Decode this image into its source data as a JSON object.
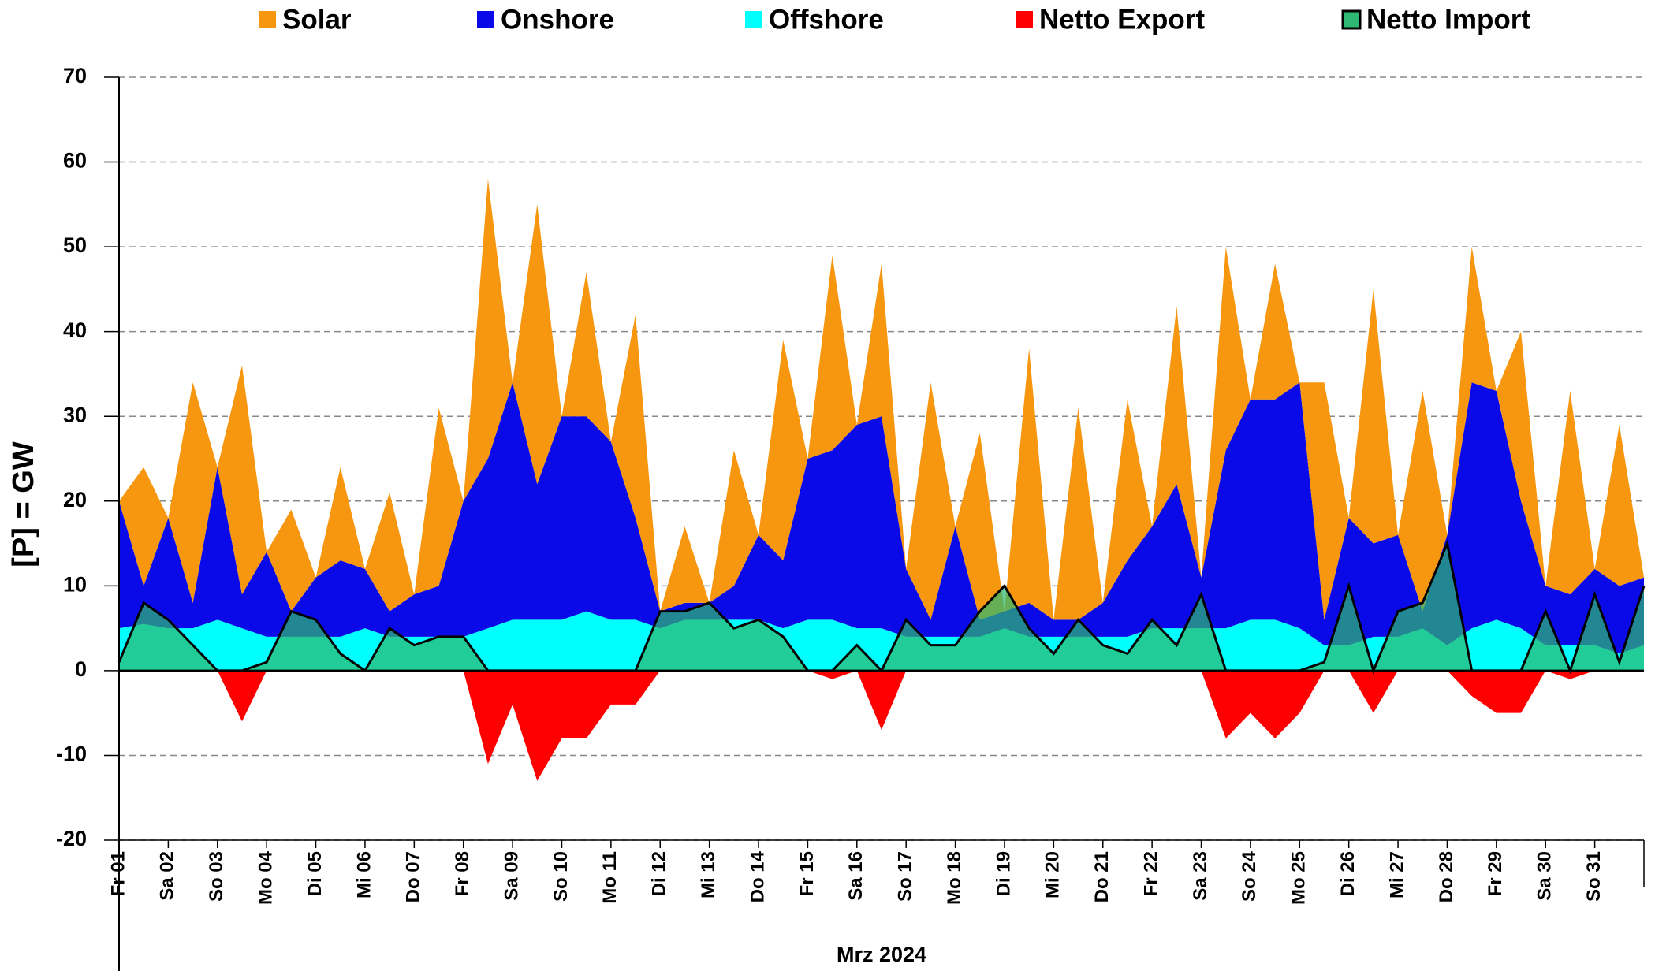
{
  "chart_data": {
    "type": "area",
    "y_label": "[P] = GW",
    "x_label": "Mrz 2024",
    "x": [
      0,
      0.5,
      1,
      1.5,
      2,
      2.5,
      3,
      3.5,
      4,
      4.5,
      5,
      5.5,
      6,
      6.5,
      7,
      7.5,
      8,
      8.5,
      9,
      9.5,
      10,
      10.5,
      11,
      11.5,
      12,
      12.5,
      13,
      13.5,
      14,
      14.5,
      15,
      15.5,
      16,
      16.5,
      17,
      17.5,
      18,
      18.5,
      19,
      19.5,
      20,
      20.5,
      21,
      21.5,
      22,
      22.5,
      23,
      23.5,
      24,
      24.5,
      25,
      25.5,
      26,
      26.5,
      27,
      27.5,
      28,
      28.5,
      29,
      29.5,
      30,
      30.5,
      31
    ],
    "series": [
      {
        "name": "Solar",
        "color": "#f7960f",
        "stacked": true,
        "values": [
          0,
          14,
          0,
          26,
          0,
          27,
          0,
          12,
          0,
          11,
          0,
          14,
          0,
          21,
          0,
          33,
          0,
          33,
          0,
          17,
          0,
          24,
          0,
          9,
          0,
          16,
          0,
          26,
          0,
          23,
          0,
          18,
          0,
          28,
          0,
          22,
          0,
          30,
          0,
          25,
          0,
          19,
          0,
          21,
          0,
          24,
          0,
          16,
          0,
          28,
          0,
          30,
          0,
          26,
          0,
          16,
          0,
          20,
          0,
          24,
          0,
          19,
          0
        ]
      },
      {
        "name": "Onshore",
        "color": "#0a0ae8",
        "stacked": true,
        "values": [
          15,
          4.5,
          13,
          3,
          18,
          4,
          10,
          3,
          7,
          9,
          7,
          3,
          5,
          6,
          16,
          20,
          28,
          16,
          24,
          23,
          21,
          12,
          2,
          2,
          2,
          4,
          10,
          8,
          19,
          20,
          24,
          25,
          8,
          2,
          13,
          2,
          2,
          4,
          2,
          2,
          4,
          9,
          12,
          17,
          6,
          21,
          26,
          26,
          29,
          3,
          15,
          11,
          12,
          2,
          13,
          29,
          27,
          15,
          7,
          6,
          9,
          8,
          8
        ]
      },
      {
        "name": "Offshore",
        "color": "#00ffff",
        "stacked": true,
        "values": [
          5,
          5.5,
          5,
          5,
          6,
          5,
          4,
          4,
          4,
          4,
          5,
          4,
          4,
          4,
          4,
          5,
          6,
          6,
          6,
          7,
          6,
          6,
          5,
          6,
          6,
          6,
          6,
          5,
          6,
          6,
          5,
          5,
          4,
          4,
          4,
          4,
          5,
          4,
          4,
          4,
          4,
          4,
          5,
          5,
          5,
          5,
          6,
          6,
          5,
          3,
          3,
          4,
          4,
          5,
          3,
          5,
          6,
          5,
          3,
          3,
          3,
          2,
          3
        ]
      },
      {
        "name": "Netto Export",
        "color": "#ff0000",
        "stacked": false,
        "values": [
          0,
          0,
          0,
          0,
          0,
          -6,
          0,
          0,
          0,
          0,
          0,
          0,
          0,
          0,
          0,
          -11,
          -4,
          -13,
          -8,
          -8,
          -4,
          -4,
          0,
          0,
          0,
          0,
          0,
          0,
          0,
          -1,
          0,
          -7,
          0,
          0,
          0,
          0,
          0,
          0,
          0,
          0,
          0,
          0,
          0,
          0,
          0,
          -8,
          -5,
          -8,
          -5,
          0,
          0,
          -5,
          0,
          0,
          0,
          -3,
          -5,
          -5,
          0,
          -1,
          0,
          0,
          0
        ]
      },
      {
        "name": "Netto Import",
        "color": "#2eb872",
        "stacked": false,
        "outline": "#000000",
        "values": [
          1,
          8,
          6,
          3,
          0,
          0,
          1,
          7,
          6,
          2,
          0,
          5,
          3,
          4,
          4,
          0,
          0,
          0,
          0,
          0,
          0,
          0,
          7,
          7,
          8,
          5,
          6,
          4,
          0,
          0,
          3,
          0,
          6,
          3,
          3,
          7,
          10,
          5,
          2,
          6,
          3,
          2,
          6,
          3,
          9,
          0,
          0,
          0,
          0,
          1,
          10,
          0,
          7,
          8,
          15,
          0,
          0,
          0,
          7,
          0,
          9,
          1,
          10
        ]
      }
    ],
    "xlim": [
      0,
      31
    ],
    "xticks": [
      {
        "value": 0,
        "label": "Fr 01"
      },
      {
        "value": 1,
        "label": "Sa 02"
      },
      {
        "value": 2,
        "label": "So 03"
      },
      {
        "value": 3,
        "label": "Mo 04"
      },
      {
        "value": 4,
        "label": "Di 05"
      },
      {
        "value": 5,
        "label": "Mi 06"
      },
      {
        "value": 6,
        "label": "Do 07"
      },
      {
        "value": 7,
        "label": "Fr 08"
      },
      {
        "value": 8,
        "label": "Sa 09"
      },
      {
        "value": 9,
        "label": "So 10"
      },
      {
        "value": 10,
        "label": "Mo 11"
      },
      {
        "value": 11,
        "label": "Di 12"
      },
      {
        "value": 12,
        "label": "Mi 13"
      },
      {
        "value": 13,
        "label": "Do 14"
      },
      {
        "value": 14,
        "label": "Fr 15"
      },
      {
        "value": 15,
        "label": "Sa 16"
      },
      {
        "value": 16,
        "label": "So 17"
      },
      {
        "value": 17,
        "label": "Mo 18"
      },
      {
        "value": 18,
        "label": "Di 19"
      },
      {
        "value": 19,
        "label": "Mi 20"
      },
      {
        "value": 20,
        "label": "Do 21"
      },
      {
        "value": 21,
        "label": "Fr 22"
      },
      {
        "value": 22,
        "label": "Sa 23"
      },
      {
        "value": 23,
        "label": "So 24"
      },
      {
        "value": 24,
        "label": "Mo 25"
      },
      {
        "value": 25,
        "label": "Di 26"
      },
      {
        "value": 26,
        "label": "Mi 27"
      },
      {
        "value": 27,
        "label": "Do 28"
      },
      {
        "value": 28,
        "label": "Fr 29"
      },
      {
        "value": 29,
        "label": "Sa 30"
      },
      {
        "value": 30,
        "label": "So 31"
      }
    ],
    "ylim": [
      -20,
      70
    ],
    "yticks": [
      -20,
      -10,
      0,
      10,
      20,
      30,
      40,
      50,
      60,
      70
    ],
    "negative_tick_color": "#ff0000",
    "grid": true
  }
}
